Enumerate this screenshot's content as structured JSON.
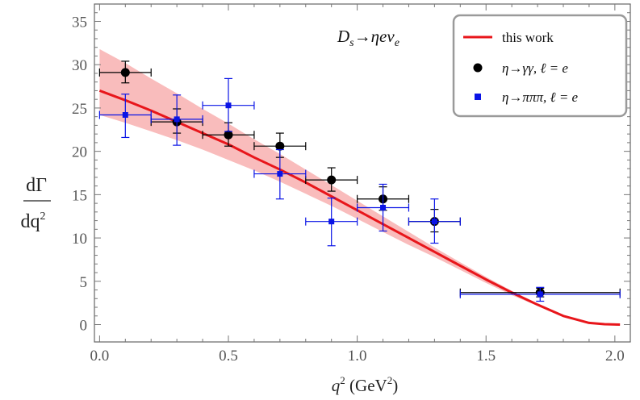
{
  "chart_data": {
    "type": "scatter",
    "title": "",
    "xlabel": {
      "base": "q",
      "sup": "2",
      "unit_open": " (GeV",
      "unit_sup": "2",
      "unit_close": ")"
    },
    "ylabel": {
      "numerator": "dΓ",
      "denominator_base": "dq",
      "denominator_sup": "2"
    },
    "xlim": [
      -0.02,
      2.06
    ],
    "ylim": [
      -2.0,
      37.0
    ],
    "xticks": [
      "0.0",
      "0.5",
      "1.0",
      "1.5",
      "2.0"
    ],
    "xtick_values": [
      0.0,
      0.5,
      1.0,
      1.5,
      2.0
    ],
    "yticks": [
      "0",
      "5",
      "10",
      "15",
      "20",
      "25",
      "30",
      "35"
    ],
    "ytick_values": [
      0,
      5,
      10,
      15,
      20,
      25,
      30,
      35
    ],
    "annotation": {
      "base": "D",
      "sub1": "s",
      "arrow": "→ηeν",
      "sub2": "e"
    },
    "legend": {
      "position": "top-right",
      "entries": [
        {
          "label": "this work",
          "marker": "line",
          "color": "#e8161b"
        },
        {
          "label": "η→γγ, ℓ = e",
          "marker": "circle",
          "color": "#000000"
        },
        {
          "label": "η→πππ, ℓ = e",
          "marker": "square",
          "color": "#0a14e6"
        }
      ]
    },
    "band_color": "#f9bcbc",
    "theory": {
      "name": "this work",
      "color": "#e8161b",
      "x": [
        0.0,
        0.1,
        0.2,
        0.3,
        0.4,
        0.5,
        0.6,
        0.7,
        0.8,
        0.9,
        1.0,
        1.1,
        1.2,
        1.3,
        1.4,
        1.5,
        1.6,
        1.7,
        1.8,
        1.9,
        1.96,
        2.02
      ],
      "y": [
        27.0,
        25.9,
        24.7,
        23.4,
        22.1,
        20.8,
        19.3,
        17.9,
        16.4,
        14.8,
        13.2,
        11.6,
        10.0,
        8.4,
        6.8,
        5.2,
        3.7,
        2.3,
        1.0,
        0.2,
        0.05,
        0.0
      ],
      "band_upper": [
        31.8,
        30.2,
        28.4,
        26.7,
        24.9,
        23.2,
        21.4,
        19.7,
        17.9,
        16.1,
        14.3,
        12.5,
        10.7,
        8.9,
        7.2,
        5.5,
        3.9,
        2.4,
        1.05,
        0.25,
        0.08,
        0.02
      ],
      "band_lower": [
        24.2,
        23.3,
        22.3,
        21.3,
        20.2,
        19.0,
        17.8,
        16.5,
        15.1,
        13.7,
        12.2,
        10.7,
        9.2,
        7.8,
        6.3,
        4.8,
        3.4,
        2.15,
        0.95,
        0.18,
        0.04,
        0.0
      ]
    },
    "series": [
      {
        "name": "η→γγ, ℓ = e",
        "marker": "circle",
        "color": "#000000",
        "x": [
          0.1,
          0.3,
          0.5,
          0.7,
          0.9,
          1.1,
          1.3,
          1.71
        ],
        "xerr_low": [
          0.1,
          0.1,
          0.1,
          0.1,
          0.1,
          0.1,
          0.1,
          0.31
        ],
        "xerr_high": [
          0.1,
          0.1,
          0.1,
          0.1,
          0.1,
          0.1,
          0.1,
          0.31
        ],
        "y": [
          29.1,
          23.4,
          21.9,
          20.6,
          16.7,
          14.5,
          11.9,
          3.7
        ],
        "yerr_low": [
          1.2,
          1.3,
          1.3,
          1.3,
          1.3,
          1.3,
          1.2,
          0.5
        ],
        "yerr_high": [
          1.3,
          1.5,
          1.4,
          1.5,
          1.4,
          1.4,
          1.4,
          0.5
        ]
      },
      {
        "name": "η→πππ, ℓ = e",
        "marker": "square",
        "color": "#0a14e6",
        "x": [
          0.1,
          0.3,
          0.5,
          0.7,
          0.9,
          1.1,
          1.3,
          1.71
        ],
        "xerr_low": [
          0.1,
          0.1,
          0.1,
          0.1,
          0.1,
          0.1,
          0.1,
          0.31
        ],
        "xerr_high": [
          0.1,
          0.1,
          0.1,
          0.1,
          0.1,
          0.1,
          0.1,
          0.31
        ],
        "y": [
          24.2,
          23.7,
          25.3,
          17.4,
          11.9,
          13.5,
          11.9,
          3.5
        ],
        "yerr_low": [
          2.6,
          3.0,
          3.0,
          2.9,
          2.8,
          2.7,
          2.5,
          0.8
        ],
        "yerr_high": [
          2.4,
          2.8,
          3.1,
          2.8,
          2.7,
          2.7,
          2.6,
          0.8
        ]
      }
    ]
  }
}
